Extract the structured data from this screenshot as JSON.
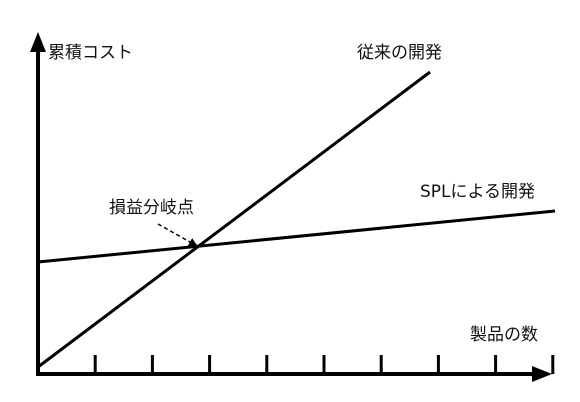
{
  "diagram": {
    "y_axis_label": "累積コスト",
    "x_axis_label": "製品の数",
    "line_conventional_label": "従来の開発",
    "line_spl_label": "SPLによる開発",
    "break_even_label": "損益分岐点",
    "x_tick_count": 9,
    "line_color": "#000000"
  }
}
